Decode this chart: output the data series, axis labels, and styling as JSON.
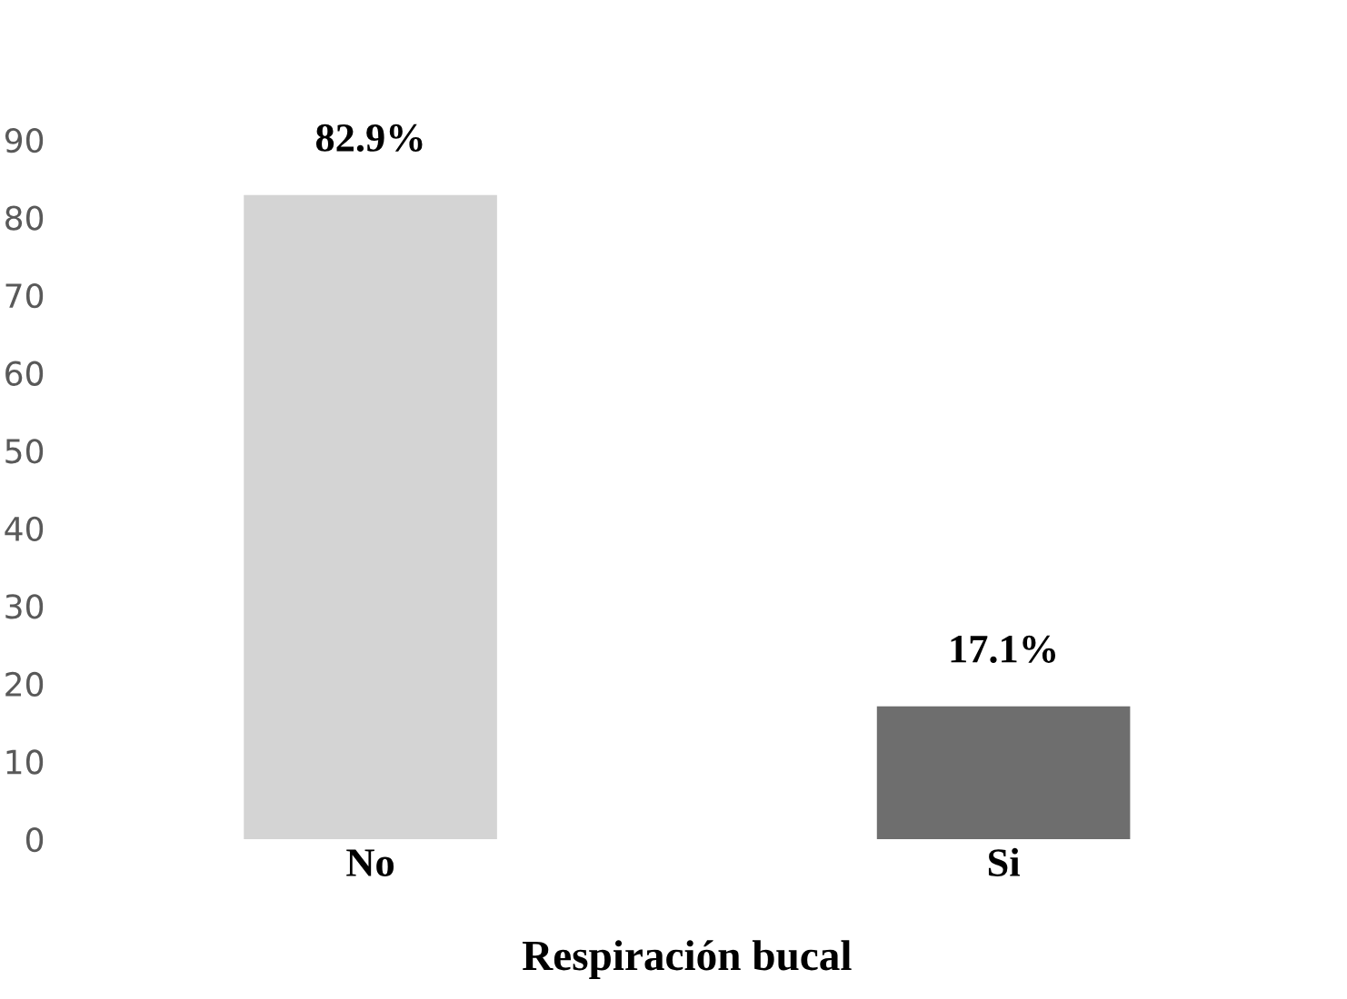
{
  "chart_data": {
    "type": "bar",
    "categories": [
      "No",
      "Si"
    ],
    "values": [
      82.9,
      17.1
    ],
    "colors": [
      "#d4d4d4",
      "#6e6e6e"
    ],
    "value_labels": [
      "82.9%",
      "17.1%"
    ],
    "xlabel": "Respiración bucal",
    "ylim": [
      0,
      90
    ],
    "yticks": [
      0,
      10,
      20,
      30,
      40,
      50,
      60,
      70,
      80,
      90
    ],
    "grid": false,
    "legend": false
  }
}
